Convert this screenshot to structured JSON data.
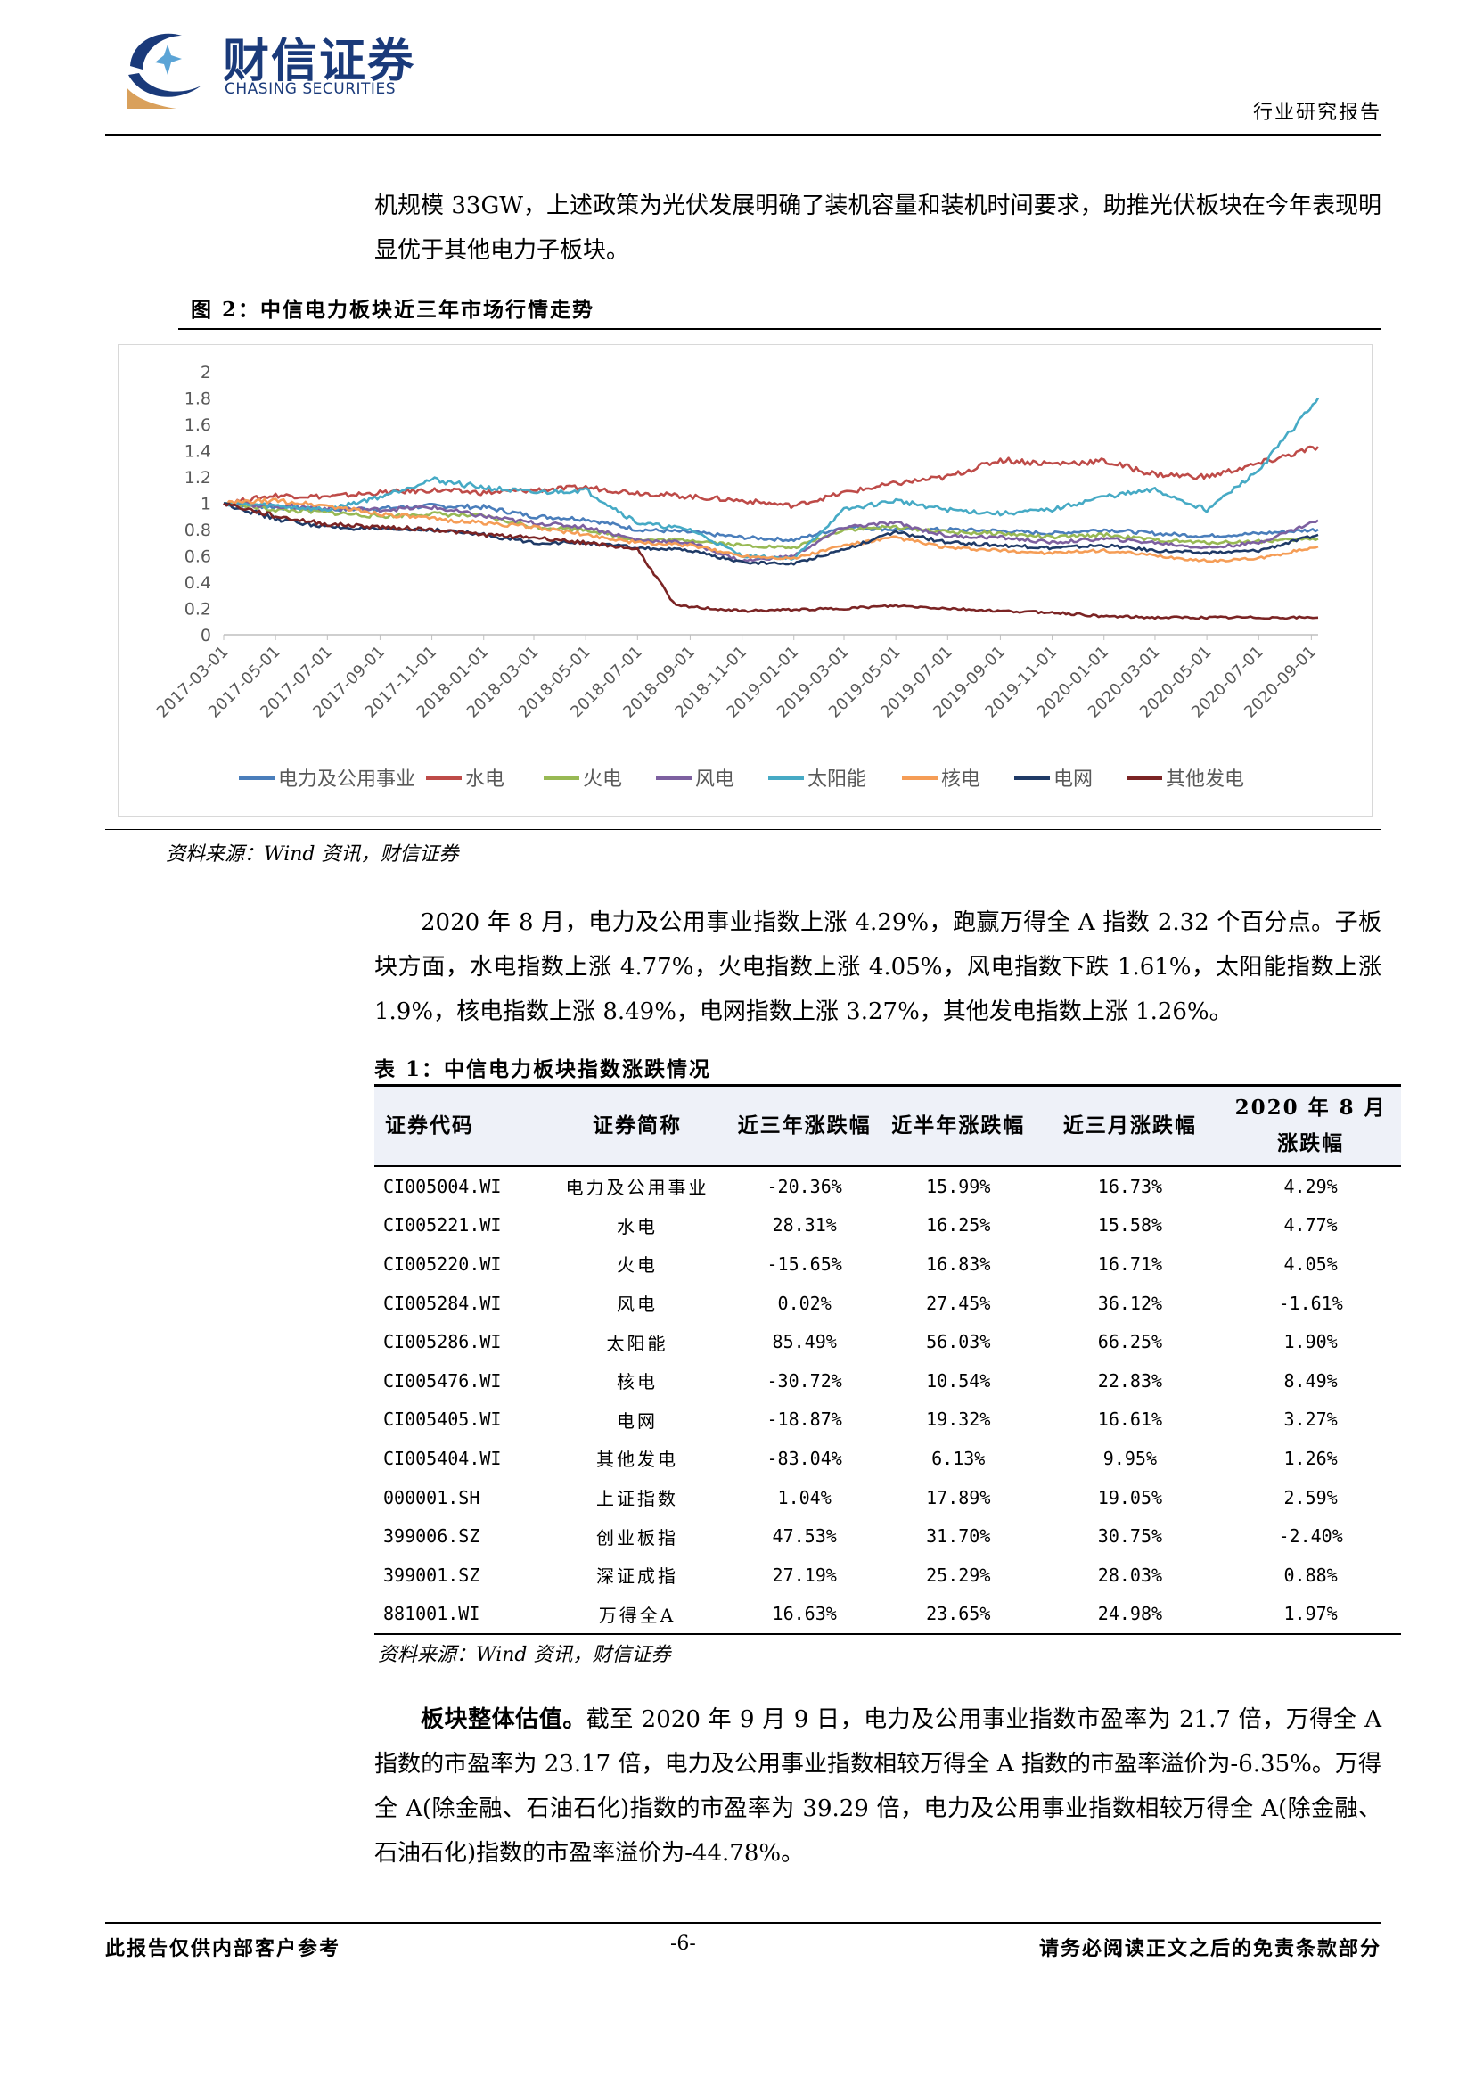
{
  "header": {
    "logo_cn": "财信证券",
    "logo_en": "CHASING SECURITIES",
    "report_type": "行业研究报告"
  },
  "intro_text": "机规模 33GW，上述政策为光伏发展明确了装机容量和装机时间要求，助推光伏板块在今年表现明显优于其他电力子板块。",
  "figure": {
    "title": "图 2：中信电力板块近三年市场行情走势",
    "source": "资料来源：Wind 资讯，财信证券"
  },
  "chart_data": {
    "type": "line",
    "title": "",
    "xlabel": "",
    "ylabel": "",
    "ylim": [
      0,
      2
    ],
    "y_ticks": [
      "0",
      "0.2",
      "0.4",
      "0.6",
      "0.8",
      "1",
      "1.2",
      "1.4",
      "1.6",
      "1.8",
      "2"
    ],
    "x_range": [
      "2017-03-01",
      "2020-09-09"
    ],
    "x_ticks": [
      "2017-03-01",
      "2017-05-01",
      "2017-07-01",
      "2017-09-01",
      "2017-11-01",
      "2018-01-01",
      "2018-03-01",
      "2018-05-01",
      "2018-07-01",
      "2018-09-01",
      "2018-11-01",
      "2019-01-01",
      "2019-03-01",
      "2019-05-01",
      "2019-07-01",
      "2019-09-01",
      "2019-11-01",
      "2020-01-01",
      "2020-03-01",
      "2020-05-01",
      "2020-07-01",
      "2020-09-01"
    ],
    "grid": false,
    "legend_position": "bottom",
    "series": [
      {
        "name": "电力及公用事业",
        "color": "#4a7ebb",
        "points": [
          [
            "2017-03-01",
            1.0
          ],
          [
            "2017-05-01",
            0.97
          ],
          [
            "2017-07-01",
            0.95
          ],
          [
            "2017-09-01",
            0.96
          ],
          [
            "2017-11-01",
            0.98
          ],
          [
            "2018-01-01",
            0.97
          ],
          [
            "2018-03-01",
            0.9
          ],
          [
            "2018-05-01",
            0.88
          ],
          [
            "2018-07-01",
            0.8
          ],
          [
            "2018-09-01",
            0.78
          ],
          [
            "2018-11-01",
            0.74
          ],
          [
            "2019-01-01",
            0.72
          ],
          [
            "2019-03-01",
            0.82
          ],
          [
            "2019-05-01",
            0.8
          ],
          [
            "2019-07-01",
            0.8
          ],
          [
            "2019-09-01",
            0.79
          ],
          [
            "2019-11-01",
            0.77
          ],
          [
            "2020-01-01",
            0.8
          ],
          [
            "2020-03-01",
            0.77
          ],
          [
            "2020-05-01",
            0.75
          ],
          [
            "2020-07-01",
            0.77
          ],
          [
            "2020-09-09",
            0.8
          ]
        ]
      },
      {
        "name": "水电",
        "color": "#be4b48",
        "points": [
          [
            "2017-03-01",
            1.0
          ],
          [
            "2017-05-01",
            1.06
          ],
          [
            "2017-07-01",
            1.05
          ],
          [
            "2017-09-01",
            1.08
          ],
          [
            "2017-11-01",
            1.1
          ],
          [
            "2018-01-01",
            1.08
          ],
          [
            "2018-03-01",
            1.1
          ],
          [
            "2018-05-01",
            1.12
          ],
          [
            "2018-07-01",
            1.08
          ],
          [
            "2018-09-01",
            1.05
          ],
          [
            "2018-11-01",
            1.02
          ],
          [
            "2019-01-01",
            0.98
          ],
          [
            "2019-03-01",
            1.08
          ],
          [
            "2019-05-01",
            1.15
          ],
          [
            "2019-07-01",
            1.2
          ],
          [
            "2019-09-01",
            1.33
          ],
          [
            "2019-11-01",
            1.3
          ],
          [
            "2020-01-01",
            1.32
          ],
          [
            "2020-03-01",
            1.22
          ],
          [
            "2020-05-01",
            1.2
          ],
          [
            "2020-07-01",
            1.3
          ],
          [
            "2020-09-09",
            1.43
          ]
        ]
      },
      {
        "name": "火电",
        "color": "#98b954",
        "points": [
          [
            "2017-03-01",
            1.0
          ],
          [
            "2017-05-01",
            0.95
          ],
          [
            "2017-07-01",
            0.93
          ],
          [
            "2017-09-01",
            0.9
          ],
          [
            "2017-11-01",
            0.92
          ],
          [
            "2018-01-01",
            0.9
          ],
          [
            "2018-03-01",
            0.82
          ],
          [
            "2018-05-01",
            0.8
          ],
          [
            "2018-07-01",
            0.72
          ],
          [
            "2018-09-01",
            0.72
          ],
          [
            "2018-11-01",
            0.68
          ],
          [
            "2019-01-01",
            0.66
          ],
          [
            "2019-03-01",
            0.8
          ],
          [
            "2019-05-01",
            0.82
          ],
          [
            "2019-07-01",
            0.78
          ],
          [
            "2019-09-01",
            0.77
          ],
          [
            "2019-11-01",
            0.74
          ],
          [
            "2020-01-01",
            0.76
          ],
          [
            "2020-03-01",
            0.72
          ],
          [
            "2020-05-01",
            0.7
          ],
          [
            "2020-07-01",
            0.71
          ],
          [
            "2020-09-09",
            0.73
          ]
        ]
      },
      {
        "name": "风电",
        "color": "#7d60a0",
        "points": [
          [
            "2017-03-01",
            1.0
          ],
          [
            "2017-05-01",
            0.98
          ],
          [
            "2017-07-01",
            0.96
          ],
          [
            "2017-09-01",
            0.95
          ],
          [
            "2017-11-01",
            0.97
          ],
          [
            "2018-01-01",
            0.9
          ],
          [
            "2018-03-01",
            0.85
          ],
          [
            "2018-05-01",
            0.82
          ],
          [
            "2018-07-01",
            0.72
          ],
          [
            "2018-09-01",
            0.7
          ],
          [
            "2018-11-01",
            0.56
          ],
          [
            "2019-01-01",
            0.6
          ],
          [
            "2019-03-01",
            0.82
          ],
          [
            "2019-05-01",
            0.85
          ],
          [
            "2019-07-01",
            0.75
          ],
          [
            "2019-09-01",
            0.74
          ],
          [
            "2019-11-01",
            0.7
          ],
          [
            "2020-01-01",
            0.73
          ],
          [
            "2020-03-01",
            0.7
          ],
          [
            "2020-05-01",
            0.66
          ],
          [
            "2020-07-01",
            0.7
          ],
          [
            "2020-09-09",
            0.87
          ]
        ]
      },
      {
        "name": "太阳能",
        "color": "#46aac5",
        "points": [
          [
            "2017-03-01",
            1.0
          ],
          [
            "2017-05-01",
            0.98
          ],
          [
            "2017-07-01",
            0.95
          ],
          [
            "2017-09-01",
            1.05
          ],
          [
            "2017-11-01",
            1.18
          ],
          [
            "2018-01-01",
            1.12
          ],
          [
            "2018-03-01",
            1.08
          ],
          [
            "2018-05-01",
            1.1
          ],
          [
            "2018-07-01",
            0.85
          ],
          [
            "2018-09-01",
            0.8
          ],
          [
            "2018-11-01",
            0.6
          ],
          [
            "2019-01-01",
            0.58
          ],
          [
            "2019-03-01",
            0.95
          ],
          [
            "2019-05-01",
            1.02
          ],
          [
            "2019-07-01",
            0.95
          ],
          [
            "2019-09-01",
            0.92
          ],
          [
            "2019-11-01",
            0.95
          ],
          [
            "2020-01-01",
            1.05
          ],
          [
            "2020-03-01",
            1.1
          ],
          [
            "2020-05-01",
            0.95
          ],
          [
            "2020-07-01",
            1.25
          ],
          [
            "2020-09-09",
            1.8
          ]
        ]
      },
      {
        "name": "核电",
        "color": "#f59d56",
        "points": [
          [
            "2017-03-01",
            1.0
          ],
          [
            "2017-05-01",
            1.02
          ],
          [
            "2017-07-01",
            0.98
          ],
          [
            "2017-09-01",
            0.92
          ],
          [
            "2017-11-01",
            0.88
          ],
          [
            "2018-01-01",
            0.85
          ],
          [
            "2018-03-01",
            0.82
          ],
          [
            "2018-05-01",
            0.76
          ],
          [
            "2018-07-01",
            0.7
          ],
          [
            "2018-09-01",
            0.68
          ],
          [
            "2018-11-01",
            0.6
          ],
          [
            "2019-01-01",
            0.58
          ],
          [
            "2019-03-01",
            0.68
          ],
          [
            "2019-05-01",
            0.74
          ],
          [
            "2019-07-01",
            0.66
          ],
          [
            "2019-09-01",
            0.64
          ],
          [
            "2019-11-01",
            0.62
          ],
          [
            "2020-01-01",
            0.64
          ],
          [
            "2020-03-01",
            0.6
          ],
          [
            "2020-05-01",
            0.56
          ],
          [
            "2020-07-01",
            0.58
          ],
          [
            "2020-09-09",
            0.67
          ]
        ]
      },
      {
        "name": "电网",
        "color": "#1f3a66",
        "points": [
          [
            "2017-03-01",
            1.0
          ],
          [
            "2017-05-01",
            0.88
          ],
          [
            "2017-07-01",
            0.82
          ],
          [
            "2017-09-01",
            0.8
          ],
          [
            "2017-11-01",
            0.8
          ],
          [
            "2018-01-01",
            0.76
          ],
          [
            "2018-03-01",
            0.7
          ],
          [
            "2018-05-01",
            0.7
          ],
          [
            "2018-07-01",
            0.66
          ],
          [
            "2018-09-01",
            0.64
          ],
          [
            "2018-11-01",
            0.55
          ],
          [
            "2019-01-01",
            0.54
          ],
          [
            "2019-03-01",
            0.65
          ],
          [
            "2019-05-01",
            0.78
          ],
          [
            "2019-07-01",
            0.7
          ],
          [
            "2019-09-01",
            0.68
          ],
          [
            "2019-11-01",
            0.66
          ],
          [
            "2020-01-01",
            0.68
          ],
          [
            "2020-03-01",
            0.64
          ],
          [
            "2020-05-01",
            0.62
          ],
          [
            "2020-07-01",
            0.64
          ],
          [
            "2020-09-09",
            0.76
          ]
        ]
      },
      {
        "name": "其他发电",
        "color": "#7b2424",
        "points": [
          [
            "2017-03-01",
            1.0
          ],
          [
            "2017-05-01",
            0.9
          ],
          [
            "2017-07-01",
            0.84
          ],
          [
            "2017-09-01",
            0.82
          ],
          [
            "2017-11-01",
            0.8
          ],
          [
            "2018-01-01",
            0.76
          ],
          [
            "2018-03-01",
            0.74
          ],
          [
            "2018-05-01",
            0.7
          ],
          [
            "2018-07-01",
            0.65
          ],
          [
            "2018-08-15",
            0.22
          ],
          [
            "2018-11-01",
            0.18
          ],
          [
            "2019-01-01",
            0.19
          ],
          [
            "2019-03-01",
            0.2
          ],
          [
            "2019-05-01",
            0.22
          ],
          [
            "2019-07-01",
            0.2
          ],
          [
            "2019-09-01",
            0.18
          ],
          [
            "2019-11-01",
            0.17
          ],
          [
            "2020-01-01",
            0.14
          ],
          [
            "2020-03-01",
            0.13
          ],
          [
            "2020-05-01",
            0.13
          ],
          [
            "2020-07-01",
            0.13
          ],
          [
            "2020-09-09",
            0.13
          ]
        ]
      }
    ]
  },
  "para_aug": "2020 年 8 月，电力及公用事业指数上涨 4.29%，跑赢万得全 A 指数 2.32 个百分点。子板块方面，水电指数上涨 4.77%，火电指数上涨 4.05%，风电指数下跌 1.61%，太阳能指数上涨 1.9%，核电指数上涨 8.49%，电网指数上涨 3.27%，其他发电指数上涨 1.26%。",
  "table": {
    "title": "表 1：中信电力板块指数涨跌情况",
    "headers": [
      "证券代码",
      "证券简称",
      "近三年涨跌幅",
      "近半年涨跌幅",
      "近三月涨跌幅",
      "2020 年 8 月涨跌幅"
    ],
    "rows": [
      [
        "CI005004.WI",
        "电力及公用事业",
        "-20.36%",
        "15.99%",
        "16.73%",
        "4.29%"
      ],
      [
        "CI005221.WI",
        "水电",
        "28.31%",
        "16.25%",
        "15.58%",
        "4.77%"
      ],
      [
        "CI005220.WI",
        "火电",
        "-15.65%",
        "16.83%",
        "16.71%",
        "4.05%"
      ],
      [
        "CI005284.WI",
        "风电",
        "0.02%",
        "27.45%",
        "36.12%",
        "-1.61%"
      ],
      [
        "CI005286.WI",
        "太阳能",
        "85.49%",
        "56.03%",
        "66.25%",
        "1.90%"
      ],
      [
        "CI005476.WI",
        "核电",
        "-30.72%",
        "10.54%",
        "22.83%",
        "8.49%"
      ],
      [
        "CI005405.WI",
        "电网",
        "-18.87%",
        "19.32%",
        "16.61%",
        "3.27%"
      ],
      [
        "CI005404.WI",
        "其他发电",
        "-83.04%",
        "6.13%",
        "9.95%",
        "1.26%"
      ],
      [
        "000001.SH",
        "上证指数",
        "1.04%",
        "17.89%",
        "19.05%",
        "2.59%"
      ],
      [
        "399006.SZ",
        "创业板指",
        "47.53%",
        "31.70%",
        "30.75%",
        "-2.40%"
      ],
      [
        "399001.SZ",
        "深证成指",
        "27.19%",
        "25.29%",
        "28.03%",
        "0.88%"
      ],
      [
        "881001.WI",
        "万得全A",
        "16.63%",
        "23.65%",
        "24.98%",
        "1.97%"
      ]
    ],
    "source": "资料来源：Wind 资讯，财信证券"
  },
  "para_val_bold": "板块整体估值。",
  "para_val_text": "截至 2020 年 9 月 9 日，电力及公用事业指数市盈率为 21.7 倍，万得全 A 指数的市盈率为 23.17 倍，电力及公用事业指数相较万得全 A 指数的市盈率溢价为-6.35%。万得全 A(除金融、石油石化)指数的市盈率为 39.29 倍，电力及公用事业指数相较万得全 A(除金融、石油石化)指数的市盈率溢价为-44.78%。",
  "footer": {
    "left": "此报告仅供内部客户参考",
    "page": "-6-",
    "right": "请务必阅读正文之后的免责条款部分"
  }
}
